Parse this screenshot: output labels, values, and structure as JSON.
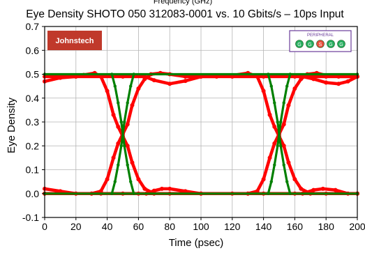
{
  "chart_data": {
    "type": "line",
    "title": "Eye Density SHOTO 050 312083-0001 vs. 10 Gbits/s – 10ps Input",
    "top_cut_text": "Frequency (GHz)",
    "xlabel": "Time (psec)",
    "ylabel": "Eye Density",
    "xlim": [
      0,
      200
    ],
    "ylim": [
      -0.1,
      0.7
    ],
    "xticks": [
      "0",
      "20",
      "40",
      "60",
      "80",
      "100",
      "120",
      "140",
      "160",
      "180",
      "200"
    ],
    "yticks": [
      "-0.1",
      "0.0",
      "0.1",
      "0.2",
      "0.3",
      "0.4",
      "0.5",
      "0.6",
      "0.7"
    ],
    "grid": true,
    "colors": {
      "output_eye": "#ff0000",
      "input_eye": "#008000",
      "grid": "#b4b4b4"
    },
    "series": [
      {
        "role": "output_eye",
        "color": "#ff0000",
        "segments": [
          [
            [
              0,
              0.47
            ],
            [
              10,
              0.485
            ],
            [
              20,
              0.49
            ],
            [
              25,
              0.497
            ],
            [
              32,
              0.505
            ],
            [
              36,
              0.49
            ],
            [
              40,
              0.43
            ],
            [
              44,
              0.33
            ],
            [
              47,
              0.28
            ],
            [
              50,
              0.24
            ],
            [
              53,
              0.2
            ],
            [
              56,
              0.13
            ],
            [
              60,
              0.06
            ],
            [
              64,
              0.02
            ],
            [
              70,
              0.0
            ],
            [
              80,
              0.0
            ],
            [
              100,
              0.0
            ],
            [
              120,
              0.0
            ],
            [
              140,
              0.0
            ],
            [
              160,
              0.0
            ],
            [
              180,
              0.0
            ],
            [
              200,
              0.0
            ]
          ],
          [
            [
              0,
              0.0
            ],
            [
              20,
              0.0
            ],
            [
              30,
              0.0
            ],
            [
              36,
              0.01
            ],
            [
              40,
              0.06
            ],
            [
              44,
              0.15
            ],
            [
              47,
              0.21
            ],
            [
              50,
              0.25
            ],
            [
              53,
              0.29
            ],
            [
              56,
              0.37
            ],
            [
              60,
              0.44
            ],
            [
              64,
              0.48
            ],
            [
              68,
              0.5
            ],
            [
              74,
              0.505
            ],
            [
              80,
              0.5
            ],
            [
              90,
              0.49
            ],
            [
              100,
              0.49
            ],
            [
              120,
              0.49
            ],
            [
              140,
              0.49
            ],
            [
              160,
              0.49
            ],
            [
              180,
              0.49
            ],
            [
              200,
              0.49
            ]
          ],
          [
            [
              0,
              0.49
            ],
            [
              20,
              0.49
            ],
            [
              50,
              0.49
            ],
            [
              64,
              0.49
            ],
            [
              70,
              0.475
            ],
            [
              80,
              0.46
            ],
            [
              90,
              0.472
            ],
            [
              100,
              0.49
            ],
            [
              110,
              0.49
            ],
            [
              120,
              0.495
            ],
            [
              130,
              0.505
            ],
            [
              136,
              0.49
            ],
            [
              140,
              0.43
            ],
            [
              144,
              0.33
            ],
            [
              147,
              0.28
            ],
            [
              150,
              0.24
            ],
            [
              153,
              0.2
            ],
            [
              156,
              0.13
            ],
            [
              160,
              0.06
            ],
            [
              164,
              0.02
            ],
            [
              170,
              0.0
            ],
            [
              200,
              0.0
            ]
          ],
          [
            [
              0,
              0.0
            ],
            [
              50,
              0.0
            ],
            [
              100,
              0.0
            ],
            [
              130,
              0.0
            ],
            [
              136,
              0.01
            ],
            [
              140,
              0.06
            ],
            [
              144,
              0.15
            ],
            [
              147,
              0.21
            ],
            [
              150,
              0.25
            ],
            [
              153,
              0.29
            ],
            [
              156,
              0.37
            ],
            [
              160,
              0.44
            ],
            [
              164,
              0.48
            ],
            [
              168,
              0.5
            ],
            [
              174,
              0.505
            ],
            [
              180,
              0.495
            ],
            [
              188,
              0.49
            ],
            [
              200,
              0.49
            ]
          ],
          [
            [
              0,
              0.02
            ],
            [
              10,
              0.01
            ],
            [
              20,
              0.0
            ],
            [
              30,
              0.0
            ],
            [
              36,
              0.0
            ],
            [
              60,
              0.0
            ],
            [
              65,
              0.0
            ],
            [
              70,
              0.012
            ],
            [
              75,
              0.02
            ],
            [
              80,
              0.02
            ],
            [
              90,
              0.01
            ],
            [
              100,
              0.0
            ],
            [
              130,
              0.0
            ],
            [
              165,
              0.0
            ],
            [
              172,
              0.015
            ],
            [
              178,
              0.02
            ],
            [
              186,
              0.015
            ],
            [
              194,
              0.0
            ],
            [
              200,
              0.0
            ]
          ],
          [
            [
              165,
              0.49
            ],
            [
              172,
              0.48
            ],
            [
              180,
              0.465
            ],
            [
              188,
              0.46
            ],
            [
              194,
              0.47
            ],
            [
              200,
              0.49
            ]
          ]
        ]
      },
      {
        "role": "input_eye",
        "color": "#008000",
        "segments": [
          [
            [
              0,
              0.5
            ],
            [
              200,
              0.5
            ]
          ],
          [
            [
              0,
              0.0
            ],
            [
              200,
              0.0
            ]
          ],
          [
            [
              43,
              0.5
            ],
            [
              45,
              0.45
            ],
            [
              47,
              0.38
            ],
            [
              49,
              0.3
            ],
            [
              51,
              0.2
            ],
            [
              53,
              0.12
            ],
            [
              55,
              0.05
            ],
            [
              57,
              0.0
            ]
          ],
          [
            [
              43,
              0.0
            ],
            [
              45,
              0.05
            ],
            [
              47,
              0.12
            ],
            [
              49,
              0.2
            ],
            [
              51,
              0.3
            ],
            [
              53,
              0.38
            ],
            [
              55,
              0.45
            ],
            [
              57,
              0.5
            ]
          ],
          [
            [
              143,
              0.5
            ],
            [
              145,
              0.45
            ],
            [
              147,
              0.38
            ],
            [
              149,
              0.3
            ],
            [
              151,
              0.2
            ],
            [
              153,
              0.12
            ],
            [
              155,
              0.05
            ],
            [
              157,
              0.0
            ]
          ],
          [
            [
              143,
              0.0
            ],
            [
              145,
              0.05
            ],
            [
              147,
              0.12
            ],
            [
              149,
              0.2
            ],
            [
              151,
              0.3
            ],
            [
              153,
              0.38
            ],
            [
              155,
              0.45
            ],
            [
              157,
              0.5
            ]
          ]
        ]
      }
    ]
  },
  "logo": {
    "text": "Johnstech",
    "color": "#c0392b"
  },
  "badge": {
    "label": "PERIPHERAL",
    "border_color": "#6a3d9a",
    "dots": [
      {
        "letter": "G",
        "color": "#27ae60"
      },
      {
        "letter": "G",
        "color": "#27ae60"
      },
      {
        "letter": "S",
        "color": "#e74c3c"
      },
      {
        "letter": "G",
        "color": "#27ae60"
      },
      {
        "letter": "G",
        "color": "#27ae60"
      }
    ]
  }
}
